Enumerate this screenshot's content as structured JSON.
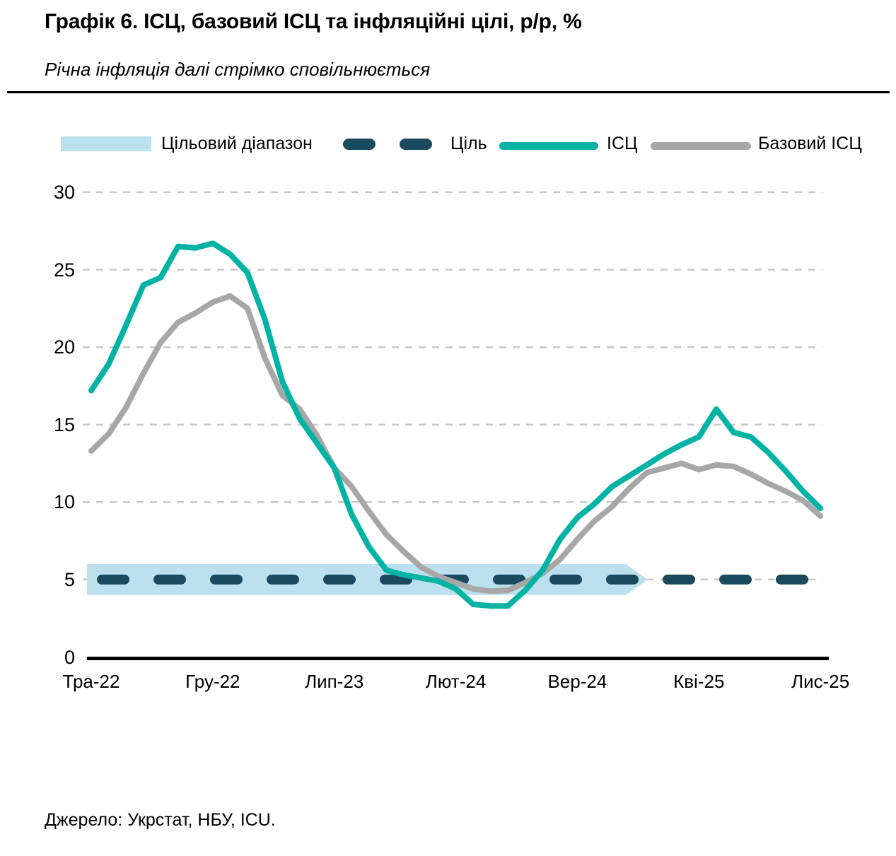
{
  "page": {
    "title": "Графік 6. ІСЦ, базовий ІСЦ та інфляційні цілі, р/р, %",
    "subtitle": "Річна інфляція далі стрімко сповільнюється",
    "source": "Джерело: Укрстат, НБУ, ICU."
  },
  "chart_data": {
    "type": "line",
    "title": "Графік 6. ІСЦ, базовий ІСЦ та інфляційні цілі, р/р, %",
    "subtitle": "Річна інфляція далі стрімко сповільнюється",
    "ylabel": "",
    "xlabel": "",
    "ylim": [
      0,
      30
    ],
    "yticks": [
      0,
      5,
      10,
      15,
      20,
      25,
      30
    ],
    "grid": "horizontal dashed",
    "legend_position": "top",
    "x": [
      "2022-05",
      "2022-06",
      "2022-07",
      "2022-08",
      "2022-09",
      "2022-10",
      "2022-11",
      "2022-12",
      "2023-01",
      "2023-02",
      "2023-03",
      "2023-04",
      "2023-05",
      "2023-06",
      "2023-07",
      "2023-08",
      "2023-09",
      "2023-10",
      "2023-11",
      "2023-12",
      "2024-01",
      "2024-02",
      "2024-03",
      "2024-04",
      "2024-05",
      "2024-06",
      "2024-07",
      "2024-08",
      "2024-09",
      "2024-10",
      "2024-11",
      "2024-12",
      "2025-01",
      "2025-02",
      "2025-03",
      "2025-04",
      "2025-05",
      "2025-06",
      "2025-07",
      "2025-08",
      "2025-09",
      "2025-10",
      "2025-11"
    ],
    "x_tick_labels": [
      {
        "index": 0,
        "label": "Тра-22"
      },
      {
        "index": 7,
        "label": "Гру-22"
      },
      {
        "index": 14,
        "label": "Лип-23"
      },
      {
        "index": 21,
        "label": "Лют-24"
      },
      {
        "index": 28,
        "label": "Вер-24"
      },
      {
        "index": 35,
        "label": "Кві-25"
      },
      {
        "index": 42,
        "label": "Лис-25"
      }
    ],
    "series": [
      {
        "name": "ІСЦ",
        "color": "#00B3A4",
        "values": [
          17.2,
          18.9,
          21.4,
          24.0,
          24.5,
          26.5,
          26.4,
          26.7,
          26.0,
          24.8,
          21.8,
          17.8,
          15.4,
          13.8,
          12.2,
          9.2,
          7.1,
          5.6,
          5.3,
          5.1,
          4.9,
          4.4,
          3.4,
          3.3,
          3.3,
          4.3,
          5.6,
          7.6,
          9.0,
          9.9,
          11.0,
          11.7,
          12.4,
          13.1,
          13.7,
          14.2,
          16.0,
          14.5,
          14.2,
          13.2,
          12.0,
          10.7,
          9.6
        ]
      },
      {
        "name": "Базовий ІСЦ",
        "color": "#A7A7A7",
        "values": [
          13.3,
          14.4,
          16.1,
          18.3,
          20.3,
          21.6,
          22.2,
          22.9,
          23.3,
          22.5,
          19.3,
          16.9,
          16.0,
          14.3,
          12.2,
          11.0,
          9.4,
          7.9,
          6.8,
          5.8,
          5.2,
          4.8,
          4.4,
          4.25,
          4.3,
          4.8,
          5.4,
          6.3,
          7.6,
          8.8,
          9.7,
          10.9,
          11.9,
          12.2,
          12.5,
          12.1,
          12.4,
          12.3,
          11.8,
          11.2,
          10.7,
          10.1,
          9.1
        ]
      }
    ],
    "target": {
      "name": "Ціль",
      "value": 5,
      "color": "#1A4A5E",
      "style": "dashed"
    },
    "target_range": {
      "name": "Цільовий діапазон",
      "min": 4,
      "max": 6,
      "color": "#BCE0ED",
      "arrow_end": true,
      "ends_at": "2024-12"
    },
    "colors": {
      "grid": "#C8C8C8",
      "axis": "#000000"
    }
  }
}
